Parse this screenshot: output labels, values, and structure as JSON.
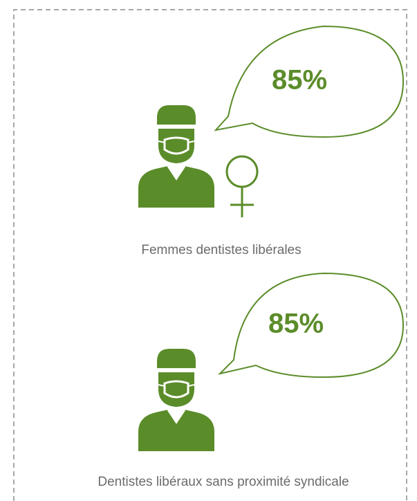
{
  "items": [
    {
      "stat": "85%",
      "caption": "Femmes dentistes libérales"
    },
    {
      "stat": "85%",
      "caption": "Dentistes libéraux sans proximité syndicale"
    }
  ]
}
